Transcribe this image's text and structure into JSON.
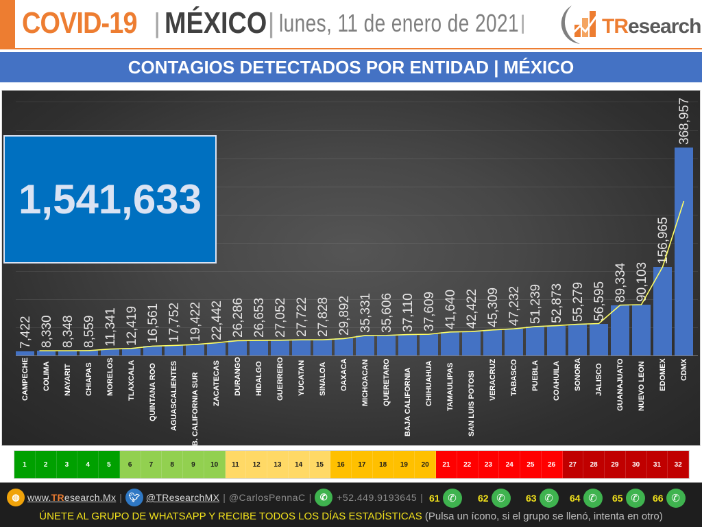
{
  "header": {
    "title_covid": "COVID-19",
    "separator": "|",
    "title_country": "MÉXICO",
    "date": "lunes, 11 de enero de 2021",
    "logo_text_tr": "TR",
    "logo_text_rest": "esearch",
    "accent_color": "#ed7d31"
  },
  "banner": {
    "title": "CONTAGIOS DETECTADOS POR ENTIDAD | MÉXICO",
    "color": "#4472c4"
  },
  "total": {
    "value": "1,541,633"
  },
  "chart_data": {
    "type": "bar",
    "title": "CONTAGIOS DETECTADOS POR ENTIDAD | MÉXICO",
    "xlabel": "",
    "ylabel": "",
    "ylim": [
      0,
      450000
    ],
    "grid": true,
    "legend": "none",
    "bar_color": "#4472c4",
    "trendline_color": "#ffff66",
    "annotation_total": "1,541,633",
    "categories": [
      "CAMPECHE",
      "COLIMA",
      "NAYARIT",
      "CHIAPAS",
      "MORELOS",
      "TLAXCALA",
      "QUINTANA ROO",
      "AGUASCALIENTES",
      "B. CALIFORNIA SUR",
      "ZACATECAS",
      "DURANGO",
      "HIDALGO",
      "GUERRERO",
      "YUCATAN",
      "SINALOA",
      "OAXACA",
      "MICHOACAN",
      "QUERETARO",
      "BAJA CALIFORNIA",
      "CHIHUAHUA",
      "TAMAULIPAS",
      "SAN LUIS POTOSI",
      "VERACRUZ",
      "TABASCO",
      "PUEBLA",
      "COAHUILA",
      "SONORA",
      "JALISCO",
      "GUANAJUATO",
      "NUEVO LEON",
      "EDOMEX",
      "CDMX"
    ],
    "values": [
      7422,
      8330,
      8348,
      8559,
      11341,
      12419,
      16561,
      17752,
      19422,
      22442,
      26286,
      26653,
      27052,
      27722,
      27828,
      29892,
      35331,
      35606,
      37110,
      37609,
      41640,
      42422,
      45309,
      47232,
      51239,
      52873,
      55279,
      56595,
      89334,
      90103,
      156965,
      368957
    ],
    "labels": [
      "7,422",
      "8,330",
      "8,348",
      "8,559",
      "11,341",
      "12,419",
      "16,561",
      "17,752",
      "19,422",
      "22,442",
      "26,286",
      "26,653",
      "27,052",
      "27,722",
      "27,828",
      "29,892",
      "35,331",
      "35,606",
      "37,110",
      "37,609",
      "41,640",
      "42,422",
      "45,309",
      "47,232",
      "51,239",
      "52,873",
      "55,279",
      "56,595",
      "89,334",
      "90,103",
      "156,965",
      "368,957"
    ]
  },
  "scale": {
    "cells": [
      {
        "n": "1",
        "bg": "#00a000",
        "fg": "#ffffff"
      },
      {
        "n": "2",
        "bg": "#00a000",
        "fg": "#ffffff"
      },
      {
        "n": "3",
        "bg": "#00a000",
        "fg": "#ffffff"
      },
      {
        "n": "4",
        "bg": "#00a000",
        "fg": "#ffffff"
      },
      {
        "n": "5",
        "bg": "#00a000",
        "fg": "#ffffff"
      },
      {
        "n": "6",
        "bg": "#92d050",
        "fg": "#1a1a1a"
      },
      {
        "n": "7",
        "bg": "#92d050",
        "fg": "#1a1a1a"
      },
      {
        "n": "8",
        "bg": "#92d050",
        "fg": "#1a1a1a"
      },
      {
        "n": "9",
        "bg": "#92d050",
        "fg": "#1a1a1a"
      },
      {
        "n": "10",
        "bg": "#92d050",
        "fg": "#1a1a1a"
      },
      {
        "n": "11",
        "bg": "#ffd966",
        "fg": "#1a1a1a"
      },
      {
        "n": "12",
        "bg": "#ffd966",
        "fg": "#1a1a1a"
      },
      {
        "n": "13",
        "bg": "#ffd966",
        "fg": "#1a1a1a"
      },
      {
        "n": "14",
        "bg": "#ffd966",
        "fg": "#1a1a1a"
      },
      {
        "n": "15",
        "bg": "#ffd966",
        "fg": "#1a1a1a"
      },
      {
        "n": "16",
        "bg": "#ffc000",
        "fg": "#1a1a1a"
      },
      {
        "n": "17",
        "bg": "#ffc000",
        "fg": "#1a1a1a"
      },
      {
        "n": "18",
        "bg": "#ffc000",
        "fg": "#1a1a1a"
      },
      {
        "n": "19",
        "bg": "#ffc000",
        "fg": "#1a1a1a"
      },
      {
        "n": "20",
        "bg": "#ffc000",
        "fg": "#1a1a1a"
      },
      {
        "n": "21",
        "bg": "#ff0000",
        "fg": "#ffffff"
      },
      {
        "n": "22",
        "bg": "#ff0000",
        "fg": "#ffffff"
      },
      {
        "n": "23",
        "bg": "#ff0000",
        "fg": "#ffffff"
      },
      {
        "n": "24",
        "bg": "#ff0000",
        "fg": "#ffffff"
      },
      {
        "n": "25",
        "bg": "#ff0000",
        "fg": "#ffffff"
      },
      {
        "n": "26",
        "bg": "#ff0000",
        "fg": "#ffffff"
      },
      {
        "n": "27",
        "bg": "#c00000",
        "fg": "#ffffff"
      },
      {
        "n": "28",
        "bg": "#c00000",
        "fg": "#ffffff"
      },
      {
        "n": "29",
        "bg": "#c00000",
        "fg": "#ffffff"
      },
      {
        "n": "30",
        "bg": "#c00000",
        "fg": "#ffffff"
      },
      {
        "n": "31",
        "bg": "#c00000",
        "fg": "#ffffff"
      },
      {
        "n": "32",
        "bg": "#c00000",
        "fg": "#ffffff"
      }
    ]
  },
  "footer": {
    "website_prefix": "www.",
    "website_tr": "TR",
    "website_rest": "esearch.Mx",
    "twitter": "@TResearchMX",
    "twitter_personal": "@CarlosPennaC",
    "phone": "+52.449.9193645",
    "separator": "|",
    "whatsapp_groups": [
      "61",
      "62",
      "63",
      "64",
      "65",
      "66"
    ],
    "cta_main": "ÚNETE AL GRUPO DE WHATSAPP Y RECIBE TODOS LOS DÍAS ESTADÍSTICAS",
    "cta_note": "(Pulsa un ícono, si el grupo se llenó, intenta en otro)"
  }
}
